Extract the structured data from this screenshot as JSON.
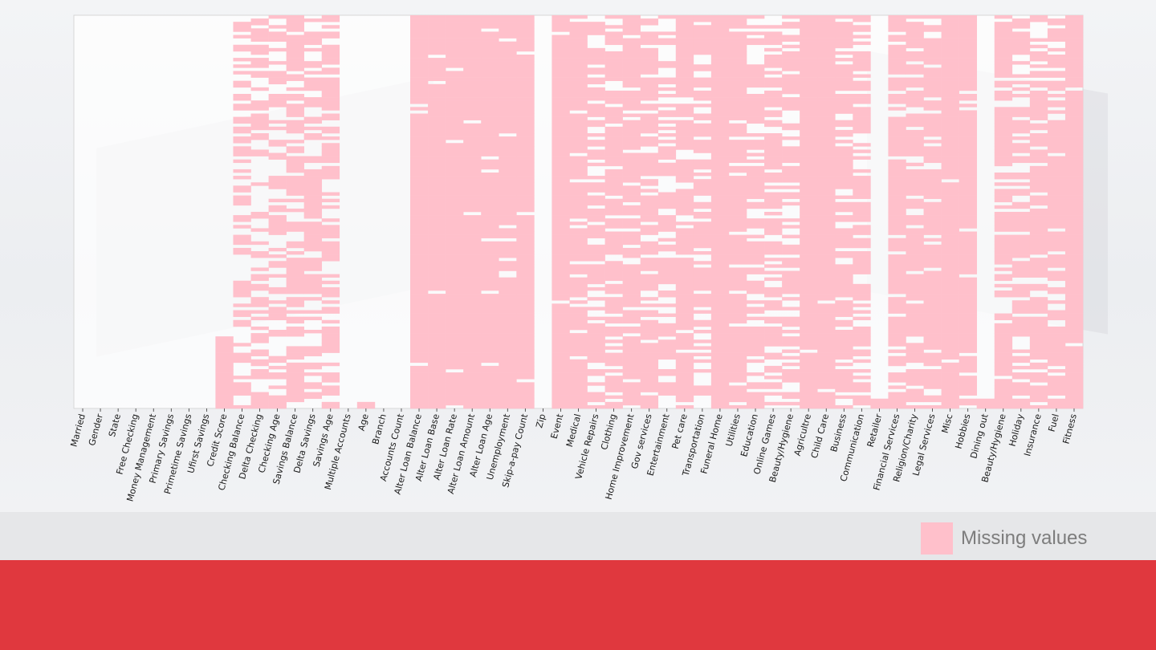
{
  "chart_data": {
    "type": "heatmap",
    "title": "",
    "xlabel": "",
    "ylabel": "",
    "columns": [
      "Married",
      "Gender",
      "State",
      "Free Checking",
      "Money Management",
      "Primary Savings",
      "Primetime Savings",
      "Ufirst Savings",
      "Credit Score",
      "Checking Balance",
      "Delta Checking",
      "Checking Age",
      "Savings Balance",
      "Delta Savings",
      "Savings Age",
      "Multiple Accounts",
      "Age",
      "Branch",
      "Accounts Count",
      "Alter Loan Balance",
      "Alter Loan Base",
      "Alter Loan Rate",
      "Alter Loan Amount",
      "Alter Loan Age",
      "Unemployment",
      "Skip-a-pay Count",
      "Zip",
      "Event",
      "Medical",
      "Vehicle Repairs",
      "Clothing",
      "Home Improvement",
      "Gov services",
      "Entertainment",
      "Pet care",
      "Transportation",
      "Funeral Home",
      "Utilities",
      "Education",
      "Online Games",
      "Beauty/Hygiene",
      "Agricultre",
      "Child Care",
      "Business",
      "Communication",
      "Retailer",
      "Financial Services",
      "Religion/Charity",
      "Legal Services",
      "Misc",
      "Hobbies",
      "Dining out",
      "Beauty/Hygiene",
      "Holiday",
      "Insurance",
      "Fuel",
      "Fitness"
    ],
    "missing_fraction": [
      0.0,
      0.0,
      0.0,
      0.0,
      0.0,
      0.0,
      0.0,
      0.0,
      0.18,
      0.45,
      0.45,
      0.45,
      0.65,
      0.65,
      0.65,
      0.0,
      0.01,
      0.0,
      0.0,
      0.97,
      0.97,
      0.97,
      0.97,
      0.97,
      0.93,
      0.96,
      0.0,
      0.97,
      0.85,
      0.7,
      0.8,
      0.85,
      0.8,
      0.55,
      0.85,
      0.7,
      0.99,
      0.9,
      0.7,
      0.7,
      0.65,
      0.99,
      0.98,
      0.8,
      0.6,
      0.02,
      0.85,
      0.75,
      0.85,
      0.95,
      0.9,
      0.02,
      0.8,
      0.7,
      0.75,
      0.85,
      0.99
    ],
    "color_missing": "#ffc0cb",
    "color_present": "#ffffff",
    "legend": [
      "Missing values"
    ],
    "legend_position": "bottom-right",
    "grid": false
  }
}
